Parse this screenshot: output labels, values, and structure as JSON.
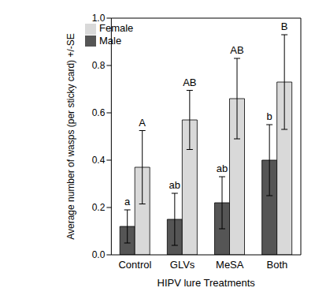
{
  "chart_data": {
    "type": "bar",
    "x_label": "HIPV lure Treatments",
    "y_label": "Average number of wasps (per sticky card) +/-SE",
    "categories": [
      "Control",
      "GLVs",
      "MeSA",
      "Both"
    ],
    "series": [
      {
        "name": "Male",
        "color": "#555555",
        "values": [
          0.12,
          0.15,
          0.22,
          0.4
        ],
        "errors": [
          0.07,
          0.11,
          0.11,
          0.15
        ],
        "letters": [
          "a",
          "ab",
          "ab",
          "b"
        ]
      },
      {
        "name": "Female",
        "color": "#d9d9d9",
        "values": [
          0.37,
          0.57,
          0.66,
          0.73
        ],
        "errors": [
          0.155,
          0.125,
          0.17,
          0.2
        ],
        "letters": [
          "A",
          "AB",
          "AB",
          "B"
        ]
      }
    ],
    "ylim": [
      0,
      1
    ],
    "yticks": [
      {
        "value": 0,
        "label": "0.0"
      },
      {
        "value": 0.2,
        "label": "0.2"
      },
      {
        "value": 0.4,
        "label": "0.4"
      },
      {
        "value": 0.6,
        "label": "0.6"
      },
      {
        "value": 0.8,
        "label": "0.8"
      },
      {
        "value": 1,
        "label": "1.0"
      }
    ],
    "grid": false,
    "legend": "upper left"
  }
}
